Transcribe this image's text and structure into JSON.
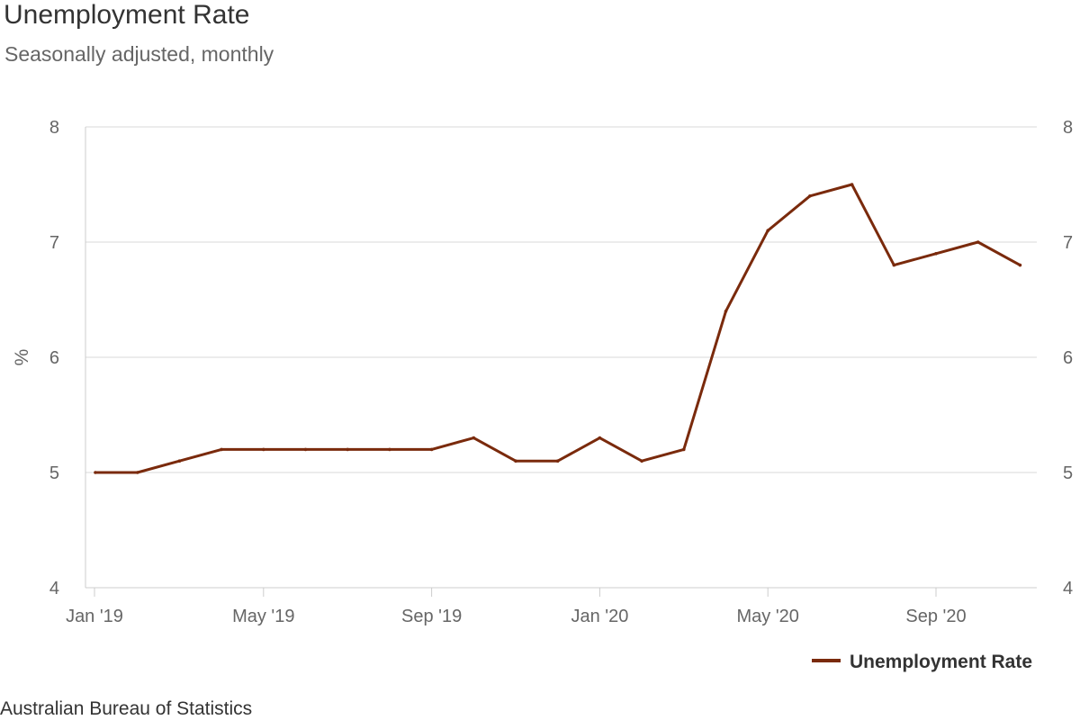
{
  "title": "Unemployment Rate",
  "subtitle": "Seasonally adjusted, monthly",
  "source": "Australian Bureau of Statistics",
  "chart_data": {
    "type": "line",
    "title": "Unemployment Rate",
    "subtitle": "Seasonally adjusted, monthly",
    "xlabel": "",
    "ylabel": "%",
    "ylim": [
      4,
      8
    ],
    "yticks": [
      4,
      5,
      6,
      7,
      8
    ],
    "right_axis_ticks": [
      4,
      5,
      6,
      7,
      8
    ],
    "grid": true,
    "legend_position": "bottom-right",
    "x": [
      "2019-01",
      "2019-02",
      "2019-03",
      "2019-04",
      "2019-05",
      "2019-06",
      "2019-07",
      "2019-08",
      "2019-09",
      "2019-10",
      "2019-11",
      "2019-12",
      "2020-01",
      "2020-02",
      "2020-03",
      "2020-04",
      "2020-05",
      "2020-06",
      "2020-07",
      "2020-08",
      "2020-09",
      "2020-10",
      "2020-11"
    ],
    "xtick_labels": [
      {
        "x": "2019-01",
        "label": "Jan '19"
      },
      {
        "x": "2019-05",
        "label": "May '19"
      },
      {
        "x": "2019-09",
        "label": "Sep '19"
      },
      {
        "x": "2020-01",
        "label": "Jan '20"
      },
      {
        "x": "2020-05",
        "label": "May '20"
      },
      {
        "x": "2020-09",
        "label": "Sep '20"
      }
    ],
    "series": [
      {
        "name": "Unemployment Rate",
        "color": "#7a2a0c",
        "values": [
          5.0,
          5.0,
          5.1,
          5.2,
          5.2,
          5.2,
          5.2,
          5.2,
          5.2,
          5.3,
          5.1,
          5.1,
          5.3,
          5.1,
          5.2,
          6.4,
          7.1,
          7.4,
          7.5,
          6.8,
          6.9,
          7.0,
          6.8
        ]
      }
    ]
  }
}
